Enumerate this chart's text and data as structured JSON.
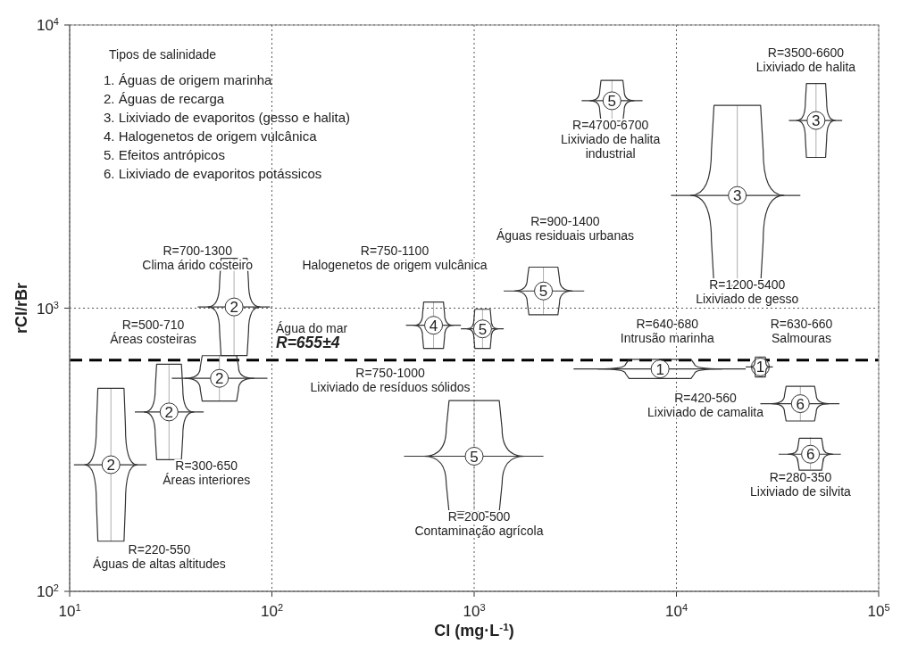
{
  "chart_data": {
    "type": "scatter",
    "color": "#333333",
    "marker": "circle",
    "xlabel": "Cl (mg·L$^{-1}$)",
    "ylabel": "rCl/rBr",
    "log": "xy",
    "grid": true,
    "xlim": [
      10,
      100000
    ],
    "ylim": [
      100,
      10000
    ],
    "xticks": [
      {
        "value": 10,
        "label": "10$^{1}$"
      },
      {
        "value": 100,
        "label": "10$^{2}$"
      },
      {
        "value": 1000,
        "label": "10$^{3}$"
      },
      {
        "value": 10000,
        "label": "10$^{4}$"
      },
      {
        "value": 100000,
        "label": "10$^{5}$"
      }
    ],
    "yticks": [
      {
        "value": 100,
        "label": "10$^{2}$"
      },
      {
        "value": 1000,
        "label": "10$^{3}$"
      },
      {
        "value": 10000,
        "label": "10$^{4}$"
      }
    ],
    "x": [
      16,
      31,
      55,
      65,
      630,
      1100,
      2200,
      4800,
      20000,
      49000,
      8300,
      26000,
      41000,
      46000,
      1000
    ],
    "values": [
      280,
      430,
      565,
      1010,
      870,
      845,
      1150,
      5400,
      2500,
      4600,
      610,
      620,
      460,
      305,
      300
    ],
    "xerrors": [
      [
        10.5,
        24
      ],
      [
        21,
        46
      ],
      [
        32,
        95
      ],
      [
        43,
        98
      ],
      [
        460,
        860
      ],
      [
        860,
        1400
      ],
      [
        1400,
        3500
      ],
      [
        3400,
        6800
      ],
      [
        9400,
        41000
      ],
      [
        36000,
        66000
      ],
      [
        3100,
        22000
      ],
      [
        22000,
        30000
      ],
      [
        26000,
        64000
      ],
      [
        32000,
        65000
      ],
      [
        450,
        2200
      ]
    ],
    "errors": [
      [
        150,
        520
      ],
      [
        290,
        630
      ],
      [
        470,
        680
      ],
      [
        680,
        1500
      ],
      [
        720,
        1050
      ],
      [
        720,
        990
      ],
      [
        950,
        1400
      ],
      [
        4600,
        6400
      ],
      [
        1200,
        5200
      ],
      [
        3400,
        6200
      ],
      [
        565,
        660
      ],
      [
        570,
        670
      ],
      [
        400,
        530
      ],
      [
        270,
        350
      ],
      [
        190,
        470
      ]
    ],
    "ref_lines": [
      {
        "axis": "y",
        "value": 655,
        "label": "Água do mar\nR=655±4",
        "line_style": "dashed",
        "color": "#000000"
      }
    ],
    "annotations": [
      "Tipos de salinidade",
      "1. Águas de origem marinha",
      "2. Águas de recarga",
      "3. Lixiviado de evaporitos (gesso e halita)",
      "4. Halogenetos de origem vulcânica",
      "5. Efeitos antrópicos",
      "6. Lixiviado de evaporitos potássicos",
      {
        "text": "2",
        "x": 16,
        "y": 280
      },
      {
        "text": "2",
        "x": 31,
        "y": 430
      },
      {
        "text": "2",
        "x": 55,
        "y": 565
      },
      {
        "text": "2",
        "x": 65,
        "y": 1010
      },
      {
        "text": "4",
        "x": 630,
        "y": 870
      },
      {
        "text": "5",
        "x": 1100,
        "y": 845
      },
      {
        "text": "5",
        "x": 2200,
        "y": 1150
      },
      {
        "text": "5",
        "x": 4800,
        "y": 5400
      },
      {
        "text": "3",
        "x": 20000,
        "y": 2500
      },
      {
        "text": "3",
        "x": 49000,
        "y": 4600
      },
      {
        "text": "1",
        "x": 8300,
        "y": 610
      },
      {
        "text": "1",
        "x": 26000,
        "y": 620
      },
      {
        "text": "6",
        "x": 41000,
        "y": 460
      },
      {
        "text": "6",
        "x": 46000,
        "y": 305
      },
      {
        "text": "5",
        "x": 1000,
        "y": 300
      },
      "R=220-550\nÁguas de altas altitudes",
      "R=300-650\nÁreas interiores",
      "R=500-710\nÁreas costeiras",
      "R=700-1300\nClima árido costeiro",
      "R=750-1100\nHalogenetos de origem vulcânica",
      "R=750-1000\nLixiviado de resíduos sólidos",
      "R=900-1400\nÁguas residuais urbanas",
      "R=4700-6700\nLixiviado de halita\nindustrial",
      "R=3500-6600\nLixiviado de halita",
      "R=1200-5400\nLixiviado de gesso",
      "R=640-680\nIntrusão marinha",
      "R=630-660\nSalmouras",
      "R=420-560\nLixiviado de camalita",
      "R=280-350\nLixiviado de silvita",
      "R=200-500\nContaminação agrícola"
    ]
  }
}
